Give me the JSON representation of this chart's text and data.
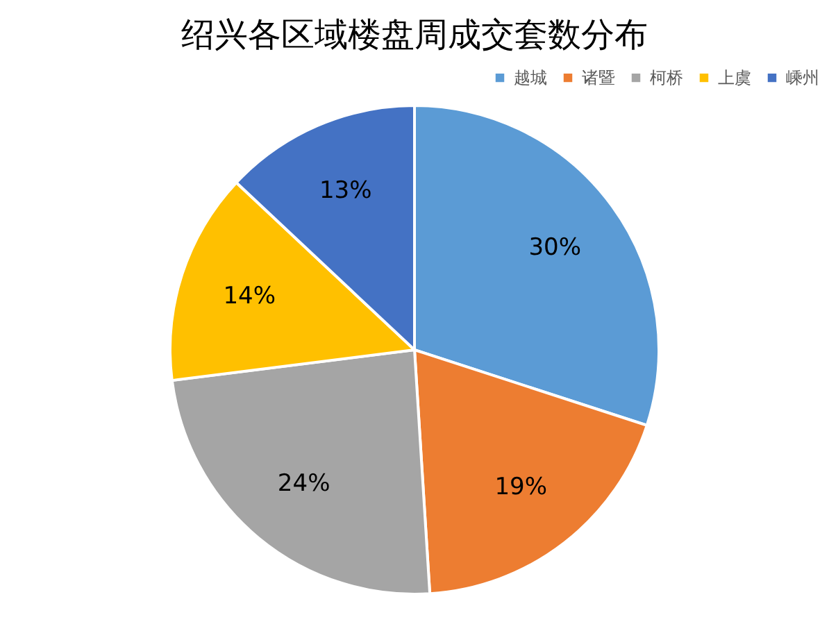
{
  "chart_data": {
    "type": "pie",
    "title": "绍兴各区域楼盘周成交套数分布",
    "categories": [
      "越城",
      "诸暨",
      "柯桥",
      "上虞",
      "嵊州"
    ],
    "values": [
      30,
      19,
      24,
      14,
      13
    ],
    "value_labels": [
      "30%",
      "19%",
      "24%",
      "14%",
      "13%"
    ],
    "colors": [
      "#5b9bd5",
      "#ed7d31",
      "#a5a5a5",
      "#ffc000",
      "#4472c4"
    ],
    "legend": "top right"
  }
}
